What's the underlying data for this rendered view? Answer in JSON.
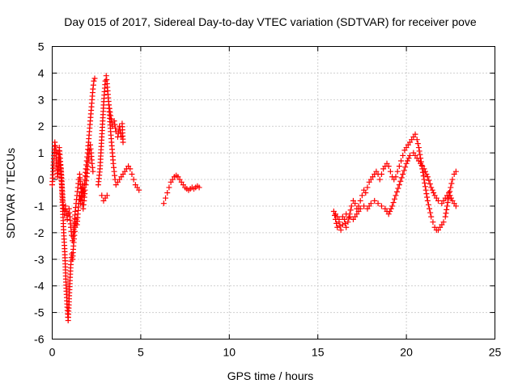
{
  "chart_data": {
    "type": "scatter",
    "title": "Day 015 of 2017, Sidereal Day-to-day VTEC variation (SDTVAR) for receiver pove",
    "xlabel": "GPS time / hours",
    "ylabel": "SDTVAR / TECUs",
    "xlim": [
      0,
      25
    ],
    "ylim": [
      -6,
      5
    ],
    "xticks": [
      "0",
      "5",
      "10",
      "15",
      "20",
      "25"
    ],
    "yticks": [
      "-6",
      "-5",
      "-4",
      "-3",
      "-2",
      "-1",
      "0",
      "1",
      "2",
      "3",
      "4",
      "5"
    ],
    "grid": true,
    "marker": "+",
    "color": "#ff0000",
    "series": [
      {
        "name": "SDTVAR",
        "segments": [
          [
            [
              0.0,
              -0.2
            ],
            [
              0.05,
              0.3
            ],
            [
              0.1,
              0.9
            ],
            [
              0.15,
              1.4
            ],
            [
              0.2,
              1.1
            ],
            [
              0.25,
              0.6
            ],
            [
              0.3,
              0.1
            ],
            [
              0.35,
              0.5
            ],
            [
              0.4,
              1.2
            ],
            [
              0.45,
              0.8
            ],
            [
              0.5,
              0.2
            ],
            [
              0.55,
              -0.4
            ],
            [
              0.6,
              -1.2
            ],
            [
              0.65,
              -2.0
            ],
            [
              0.7,
              -2.6
            ],
            [
              0.75,
              -3.4
            ],
            [
              0.8,
              -4.2
            ],
            [
              0.85,
              -4.8
            ],
            [
              0.9,
              -5.3
            ],
            [
              0.95,
              -4.6
            ],
            [
              1.0,
              -3.8
            ],
            [
              1.05,
              -3.2
            ],
            [
              1.1,
              -2.8
            ],
            [
              1.15,
              -3.0
            ],
            [
              1.2,
              -2.5
            ],
            [
              1.25,
              -2.1
            ],
            [
              1.3,
              -1.8
            ],
            [
              1.35,
              -1.5
            ],
            [
              1.4,
              -1.7
            ],
            [
              1.45,
              -1.3
            ],
            [
              1.5,
              -0.9
            ],
            [
              1.55,
              -0.6
            ],
            [
              1.6,
              -0.9
            ],
            [
              1.65,
              -0.5
            ],
            [
              1.7,
              -0.2
            ],
            [
              1.75,
              -0.6
            ],
            [
              1.8,
              -0.3
            ],
            [
              1.85,
              0.0
            ],
            [
              1.9,
              0.4
            ],
            [
              1.95,
              0.7
            ],
            [
              2.0,
              1.0
            ],
            [
              2.05,
              1.4
            ],
            [
              2.1,
              1.8
            ],
            [
              2.15,
              2.2
            ],
            [
              2.2,
              2.6
            ],
            [
              2.25,
              3.0
            ],
            [
              2.3,
              3.4
            ],
            [
              2.35,
              3.7
            ],
            [
              2.4,
              3.8
            ]
          ],
          [
            [
              0.3,
              1.0
            ],
            [
              0.4,
              0.8
            ],
            [
              0.5,
              0.4
            ],
            [
              0.55,
              -0.2
            ],
            [
              0.6,
              -0.8
            ],
            [
              0.65,
              -1.1
            ],
            [
              0.7,
              -1.3
            ],
            [
              0.75,
              -1.0
            ],
            [
              0.8,
              -1.2
            ],
            [
              0.85,
              -1.5
            ],
            [
              0.9,
              -1.3
            ],
            [
              0.95,
              -1.1
            ],
            [
              1.0,
              -1.4
            ],
            [
              1.05,
              -1.8
            ],
            [
              1.1,
              -2.1
            ],
            [
              1.15,
              -2.3
            ],
            [
              1.2,
              -2.0
            ],
            [
              1.25,
              -1.6
            ],
            [
              1.3,
              -1.2
            ],
            [
              1.35,
              -0.9
            ],
            [
              1.4,
              -0.6
            ],
            [
              1.45,
              -0.3
            ],
            [
              1.5,
              0.0
            ],
            [
              1.55,
              0.2
            ],
            [
              1.6,
              -0.2
            ],
            [
              1.65,
              -0.5
            ],
            [
              1.7,
              -0.8
            ],
            [
              1.75,
              -1.1
            ],
            [
              1.8,
              -0.8
            ],
            [
              1.85,
              -0.4
            ],
            [
              1.9,
              -0.2
            ],
            [
              1.95,
              0.1
            ],
            [
              2.0,
              0.5
            ],
            [
              2.05,
              0.8
            ],
            [
              2.1,
              1.1
            ],
            [
              2.15,
              1.3
            ],
            [
              2.2,
              1.0
            ],
            [
              2.25,
              0.6
            ],
            [
              2.3,
              0.3
            ]
          ],
          [
            [
              2.6,
              -0.2
            ],
            [
              2.7,
              0.4
            ],
            [
              2.75,
              1.0
            ],
            [
              2.8,
              1.6
            ],
            [
              2.85,
              2.2
            ],
            [
              2.9,
              2.8
            ],
            [
              2.95,
              3.3
            ],
            [
              3.0,
              3.7
            ],
            [
              3.05,
              3.9
            ],
            [
              3.1,
              3.6
            ],
            [
              3.15,
              3.2
            ],
            [
              3.2,
              2.8
            ],
            [
              3.25,
              2.3
            ],
            [
              3.3,
              1.8
            ],
            [
              3.35,
              1.4
            ],
            [
              3.4,
              1.0
            ],
            [
              3.45,
              0.6
            ],
            [
              3.5,
              0.3
            ],
            [
              3.55,
              0.0
            ],
            [
              3.6,
              -0.2
            ],
            [
              3.7,
              -0.1
            ],
            [
              3.8,
              0.0
            ],
            [
              3.9,
              0.1
            ],
            [
              4.0,
              0.2
            ],
            [
              4.1,
              0.3
            ],
            [
              4.2,
              0.4
            ],
            [
              4.3,
              0.5
            ],
            [
              4.4,
              0.4
            ],
            [
              4.5,
              0.2
            ],
            [
              4.6,
              0.0
            ],
            [
              4.7,
              -0.2
            ],
            [
              4.8,
              -0.3
            ],
            [
              4.9,
              -0.4
            ]
          ],
          [
            [
              3.2,
              2.8
            ],
            [
              3.3,
              2.4
            ],
            [
              3.4,
              2.0
            ],
            [
              3.5,
              2.2
            ],
            [
              3.6,
              1.8
            ],
            [
              3.7,
              1.6
            ],
            [
              3.8,
              2.0
            ],
            [
              3.9,
              1.6
            ],
            [
              4.0,
              1.4
            ],
            [
              3.95,
              2.1
            ]
          ],
          [
            [
              2.8,
              -0.6
            ],
            [
              2.9,
              -0.8
            ],
            [
              3.0,
              -0.7
            ],
            [
              3.1,
              -0.6
            ]
          ],
          [
            [
              6.3,
              -0.9
            ],
            [
              6.4,
              -0.7
            ],
            [
              6.5,
              -0.5
            ],
            [
              6.6,
              -0.3
            ],
            [
              6.7,
              -0.1
            ],
            [
              6.8,
              0.0
            ],
            [
              6.9,
              0.1
            ],
            [
              7.0,
              0.15
            ],
            [
              7.1,
              0.1
            ],
            [
              7.2,
              0.0
            ],
            [
              7.3,
              -0.1
            ],
            [
              7.4,
              -0.2
            ],
            [
              7.5,
              -0.3
            ],
            [
              7.6,
              -0.35
            ],
            [
              7.7,
              -0.4
            ],
            [
              7.8,
              -0.35
            ],
            [
              7.9,
              -0.3
            ],
            [
              8.0,
              -0.35
            ],
            [
              8.1,
              -0.3
            ],
            [
              8.2,
              -0.25
            ],
            [
              8.3,
              -0.3
            ]
          ],
          [
            [
              15.9,
              -1.2
            ],
            [
              16.0,
              -1.5
            ],
            [
              16.1,
              -1.8
            ],
            [
              16.2,
              -1.6
            ],
            [
              16.3,
              -1.9
            ],
            [
              16.4,
              -1.7
            ],
            [
              16.5,
              -1.5
            ],
            [
              16.6,
              -1.8
            ],
            [
              16.7,
              -1.6
            ],
            [
              16.8,
              -1.3
            ],
            [
              16.9,
              -1.0
            ],
            [
              17.0,
              -0.8
            ],
            [
              17.1,
              -0.9
            ],
            [
              17.2,
              -1.1
            ],
            [
              17.3,
              -1.0
            ],
            [
              17.4,
              -0.8
            ],
            [
              17.5,
              -0.6
            ],
            [
              17.6,
              -0.4
            ],
            [
              17.7,
              -0.5
            ],
            [
              17.8,
              -0.3
            ],
            [
              17.9,
              -0.1
            ],
            [
              18.0,
              0.0
            ],
            [
              18.1,
              0.1
            ],
            [
              18.2,
              0.2
            ],
            [
              18.3,
              0.3
            ],
            [
              18.4,
              0.2
            ],
            [
              18.5,
              0.0
            ],
            [
              18.6,
              0.2
            ],
            [
              18.7,
              0.4
            ],
            [
              18.8,
              0.5
            ],
            [
              18.9,
              0.6
            ],
            [
              19.0,
              0.5
            ],
            [
              19.1,
              0.3
            ],
            [
              19.2,
              0.1
            ],
            [
              19.3,
              0.0
            ],
            [
              19.4,
              0.1
            ],
            [
              19.5,
              0.3
            ],
            [
              19.6,
              0.5
            ],
            [
              19.7,
              0.7
            ],
            [
              19.8,
              0.9
            ],
            [
              19.9,
              1.1
            ],
            [
              20.0,
              1.2
            ],
            [
              20.1,
              1.3
            ],
            [
              20.2,
              1.4
            ],
            [
              20.3,
              1.5
            ],
            [
              20.4,
              1.6
            ],
            [
              20.5,
              1.7
            ],
            [
              20.6,
              1.5
            ],
            [
              20.7,
              1.2
            ],
            [
              20.8,
              0.8
            ],
            [
              20.9,
              0.4
            ],
            [
              21.0,
              0.0
            ],
            [
              21.1,
              -0.4
            ],
            [
              21.2,
              -0.8
            ],
            [
              21.3,
              -1.1
            ],
            [
              21.4,
              -1.4
            ],
            [
              21.5,
              -1.6
            ],
            [
              21.6,
              -1.8
            ],
            [
              21.7,
              -1.9
            ],
            [
              21.8,
              -1.9
            ],
            [
              21.9,
              -1.8
            ],
            [
              22.0,
              -1.7
            ],
            [
              22.1,
              -1.6
            ],
            [
              22.2,
              -1.4
            ],
            [
              22.3,
              -1.0
            ],
            [
              22.4,
              -0.6
            ],
            [
              22.5,
              -0.3
            ],
            [
              22.6,
              0.0
            ],
            [
              22.7,
              0.2
            ],
            [
              22.8,
              0.3
            ]
          ],
          [
            [
              16.0,
              -1.3
            ],
            [
              16.2,
              -1.5
            ],
            [
              16.4,
              -1.4
            ],
            [
              16.6,
              -1.3
            ],
            [
              16.8,
              -1.4
            ],
            [
              17.0,
              -1.5
            ],
            [
              17.2,
              -1.3
            ],
            [
              17.4,
              -1.1
            ],
            [
              17.6,
              -1.0
            ],
            [
              17.8,
              -1.1
            ],
            [
              18.0,
              -0.9
            ],
            [
              18.2,
              -0.8
            ],
            [
              18.4,
              -0.9
            ],
            [
              18.6,
              -1.0
            ],
            [
              18.8,
              -1.1
            ],
            [
              19.0,
              -1.3
            ],
            [
              19.2,
              -1.0
            ],
            [
              19.4,
              -0.6
            ],
            [
              19.6,
              -0.2
            ],
            [
              19.8,
              0.2
            ],
            [
              20.0,
              0.6
            ],
            [
              20.2,
              0.9
            ],
            [
              20.4,
              1.0
            ],
            [
              20.6,
              0.8
            ],
            [
              20.8,
              0.6
            ],
            [
              21.0,
              0.4
            ],
            [
              21.2,
              0.1
            ],
            [
              21.4,
              -0.3
            ],
            [
              21.6,
              -0.6
            ],
            [
              21.8,
              -0.8
            ],
            [
              22.0,
              -0.9
            ],
            [
              22.2,
              -0.7
            ],
            [
              22.4,
              -0.5
            ],
            [
              22.6,
              -0.8
            ],
            [
              22.8,
              -1.0
            ]
          ]
        ]
      }
    ]
  }
}
